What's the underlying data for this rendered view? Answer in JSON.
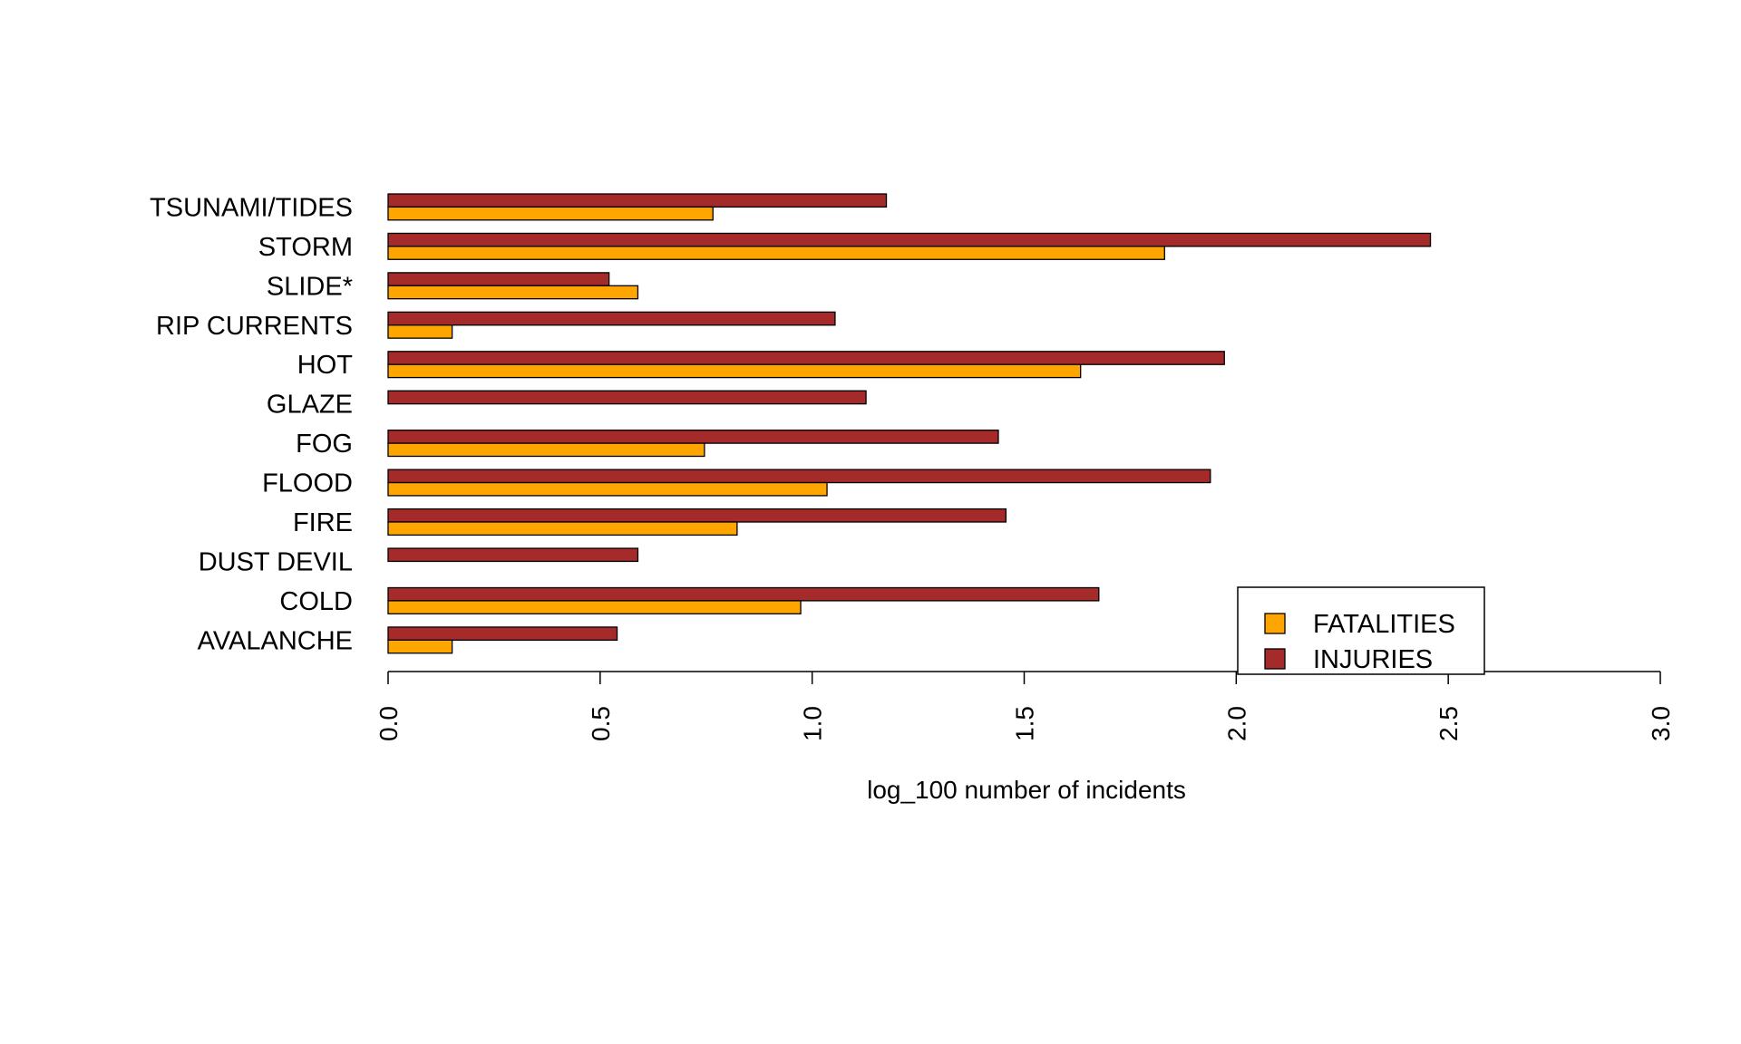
{
  "chart_data": {
    "type": "bar",
    "orientation": "horizontal",
    "categories": [
      "TSUNAMI/TIDES",
      "STORM",
      "SLIDE*",
      "RIP CURRENTS",
      "HOT",
      "GLAZE",
      "FOG",
      "FLOOD",
      "FIRE",
      "DUST DEVIL",
      "COLD",
      "AVALANCHE"
    ],
    "series": [
      {
        "name": "INJURIES",
        "color": "#a52a2a",
        "values": [
          1.175,
          2.458,
          0.521,
          1.054,
          1.972,
          1.127,
          1.439,
          1.939,
          1.457,
          0.589,
          1.676,
          0.54
        ]
      },
      {
        "name": "FATALITIES",
        "color": "#ffa500",
        "values": [
          0.766,
          1.831,
          0.589,
          0.151,
          1.633,
          0,
          0.746,
          1.035,
          0.823,
          0,
          0.973,
          0.151
        ]
      }
    ],
    "xlabel": "log_100 number of incidents",
    "ylabel": "",
    "xlim": [
      0,
      3
    ],
    "xticks": [
      "0.0",
      "0.5",
      "1.0",
      "1.5",
      "2.0",
      "2.5",
      "3.0"
    ],
    "legend": {
      "placement": "bottom-right",
      "entries": [
        {
          "label": "FATALITIES",
          "color": "#ffa500"
        },
        {
          "label": "INJURIES",
          "color": "#a52a2a"
        }
      ]
    },
    "grid": false
  }
}
